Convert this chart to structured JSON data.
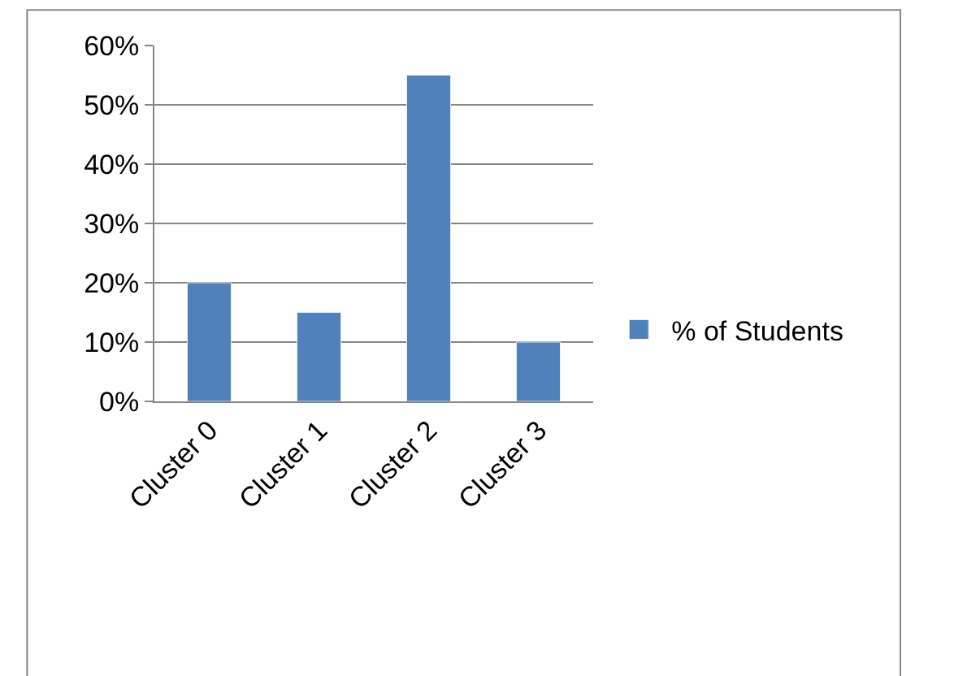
{
  "chart_data": {
    "type": "bar",
    "categories": [
      "Cluster 0",
      "Cluster 1",
      "Cluster 2",
      "Cluster 3"
    ],
    "series": [
      {
        "name": "% of Students",
        "color": "#4f81bd",
        "values": [
          20,
          15,
          55,
          10
        ]
      }
    ],
    "ylim": [
      0,
      60
    ],
    "yticks": [
      {
        "value": 0,
        "label": "0%"
      },
      {
        "value": 10,
        "label": "10%"
      },
      {
        "value": 20,
        "label": "20%"
      },
      {
        "value": 30,
        "label": "30%"
      },
      {
        "value": 40,
        "label": "40%"
      },
      {
        "value": 50,
        "label": "50%"
      },
      {
        "value": 60,
        "label": "60%"
      }
    ],
    "grid": "y",
    "legend": "right"
  }
}
